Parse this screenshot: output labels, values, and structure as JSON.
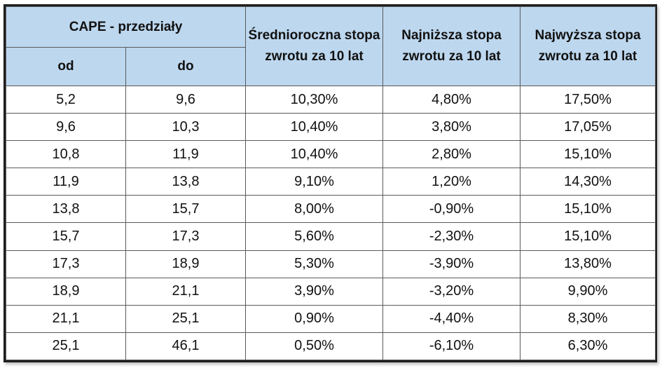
{
  "table": {
    "header": {
      "group_label": "CAPE - przedziały",
      "col_from": "od",
      "col_to": "do",
      "col_avg": "Średnioroczna stopa zwrotu za 10 lat",
      "col_min": "Najniższa stopa zwrotu za 10 lat",
      "col_max": "Najwyższa stopa zwrotu za 10 lat"
    },
    "rows": [
      {
        "from": "5,2",
        "to": "9,6",
        "avg": "10,30%",
        "min": "4,80%",
        "max": "17,50%"
      },
      {
        "from": "9,6",
        "to": "10,3",
        "avg": "10,40%",
        "min": "3,80%",
        "max": "17,05%"
      },
      {
        "from": "10,8",
        "to": "11,9",
        "avg": "10,40%",
        "min": "2,80%",
        "max": "15,10%"
      },
      {
        "from": "11,9",
        "to": "13,8",
        "avg": "9,10%",
        "min": "1,20%",
        "max": "14,30%"
      },
      {
        "from": "13,8",
        "to": "15,7",
        "avg": "8,00%",
        "min": "-0,90%",
        "max": "15,10%"
      },
      {
        "from": "15,7",
        "to": "17,3",
        "avg": "5,60%",
        "min": "-2,30%",
        "max": "15,10%"
      },
      {
        "from": "17,3",
        "to": "18,9",
        "avg": "5,30%",
        "min": "-3,90%",
        "max": "13,80%"
      },
      {
        "from": "18,9",
        "to": "21,1",
        "avg": "3,90%",
        "min": "-3,20%",
        "max": "9,90%"
      },
      {
        "from": "21,1",
        "to": "25,1",
        "avg": "0,90%",
        "min": "-4,40%",
        "max": "8,30%"
      },
      {
        "from": "25,1",
        "to": "46,1",
        "avg": "0,50%",
        "min": "-6,10%",
        "max": "6,30%"
      }
    ]
  },
  "colors": {
    "header_bg": "#bdd7ee",
    "border": "#5a5a5a",
    "text": "#111111"
  }
}
